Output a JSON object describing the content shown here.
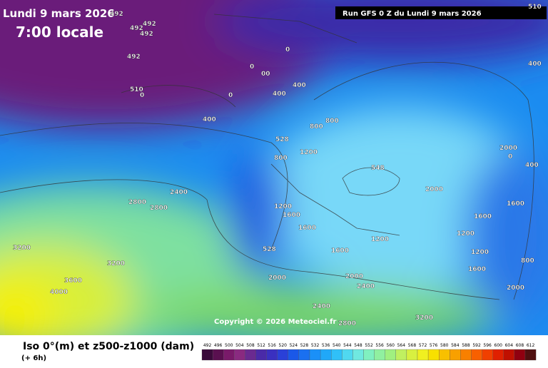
{
  "header": {
    "date": "Lundi 9 mars 2026",
    "time": "7:00 locale",
    "run": "Run GFS 0 Z du Lundi 9 mars 2026"
  },
  "copyright": "Copyright © 2026 Meteociel.fr",
  "footer": {
    "title": "Iso 0°(m) et z500-z1000 (dam)",
    "step": "(+ 6h)"
  },
  "scale": {
    "labels": [
      492,
      496,
      500,
      504,
      508,
      512,
      516,
      520,
      524,
      528,
      532,
      536,
      540,
      544,
      548,
      552,
      556,
      560,
      564,
      568,
      572,
      576,
      580,
      584,
      588,
      592,
      596,
      600,
      604,
      608,
      612
    ]
  },
  "map_labels": [
    "492",
    "492",
    "492",
    "492",
    "492",
    "510",
    "510",
    "0",
    "0",
    "00",
    "0",
    "0",
    "400",
    "400",
    "400",
    "400",
    "528",
    "800",
    "800",
    "800",
    "1200",
    "1200",
    "1600",
    "1600",
    "2000",
    "2000",
    "2400",
    "2400",
    "2800",
    "2800",
    "3200",
    "3200",
    "3600",
    "4000",
    "528",
    "1200",
    "1600",
    "2000",
    "2400",
    "2800",
    "3200",
    "548",
    "1600",
    "2000",
    "800",
    "1200",
    "1600",
    "2000",
    "400",
    "0",
    "1200",
    "1600"
  ]
}
